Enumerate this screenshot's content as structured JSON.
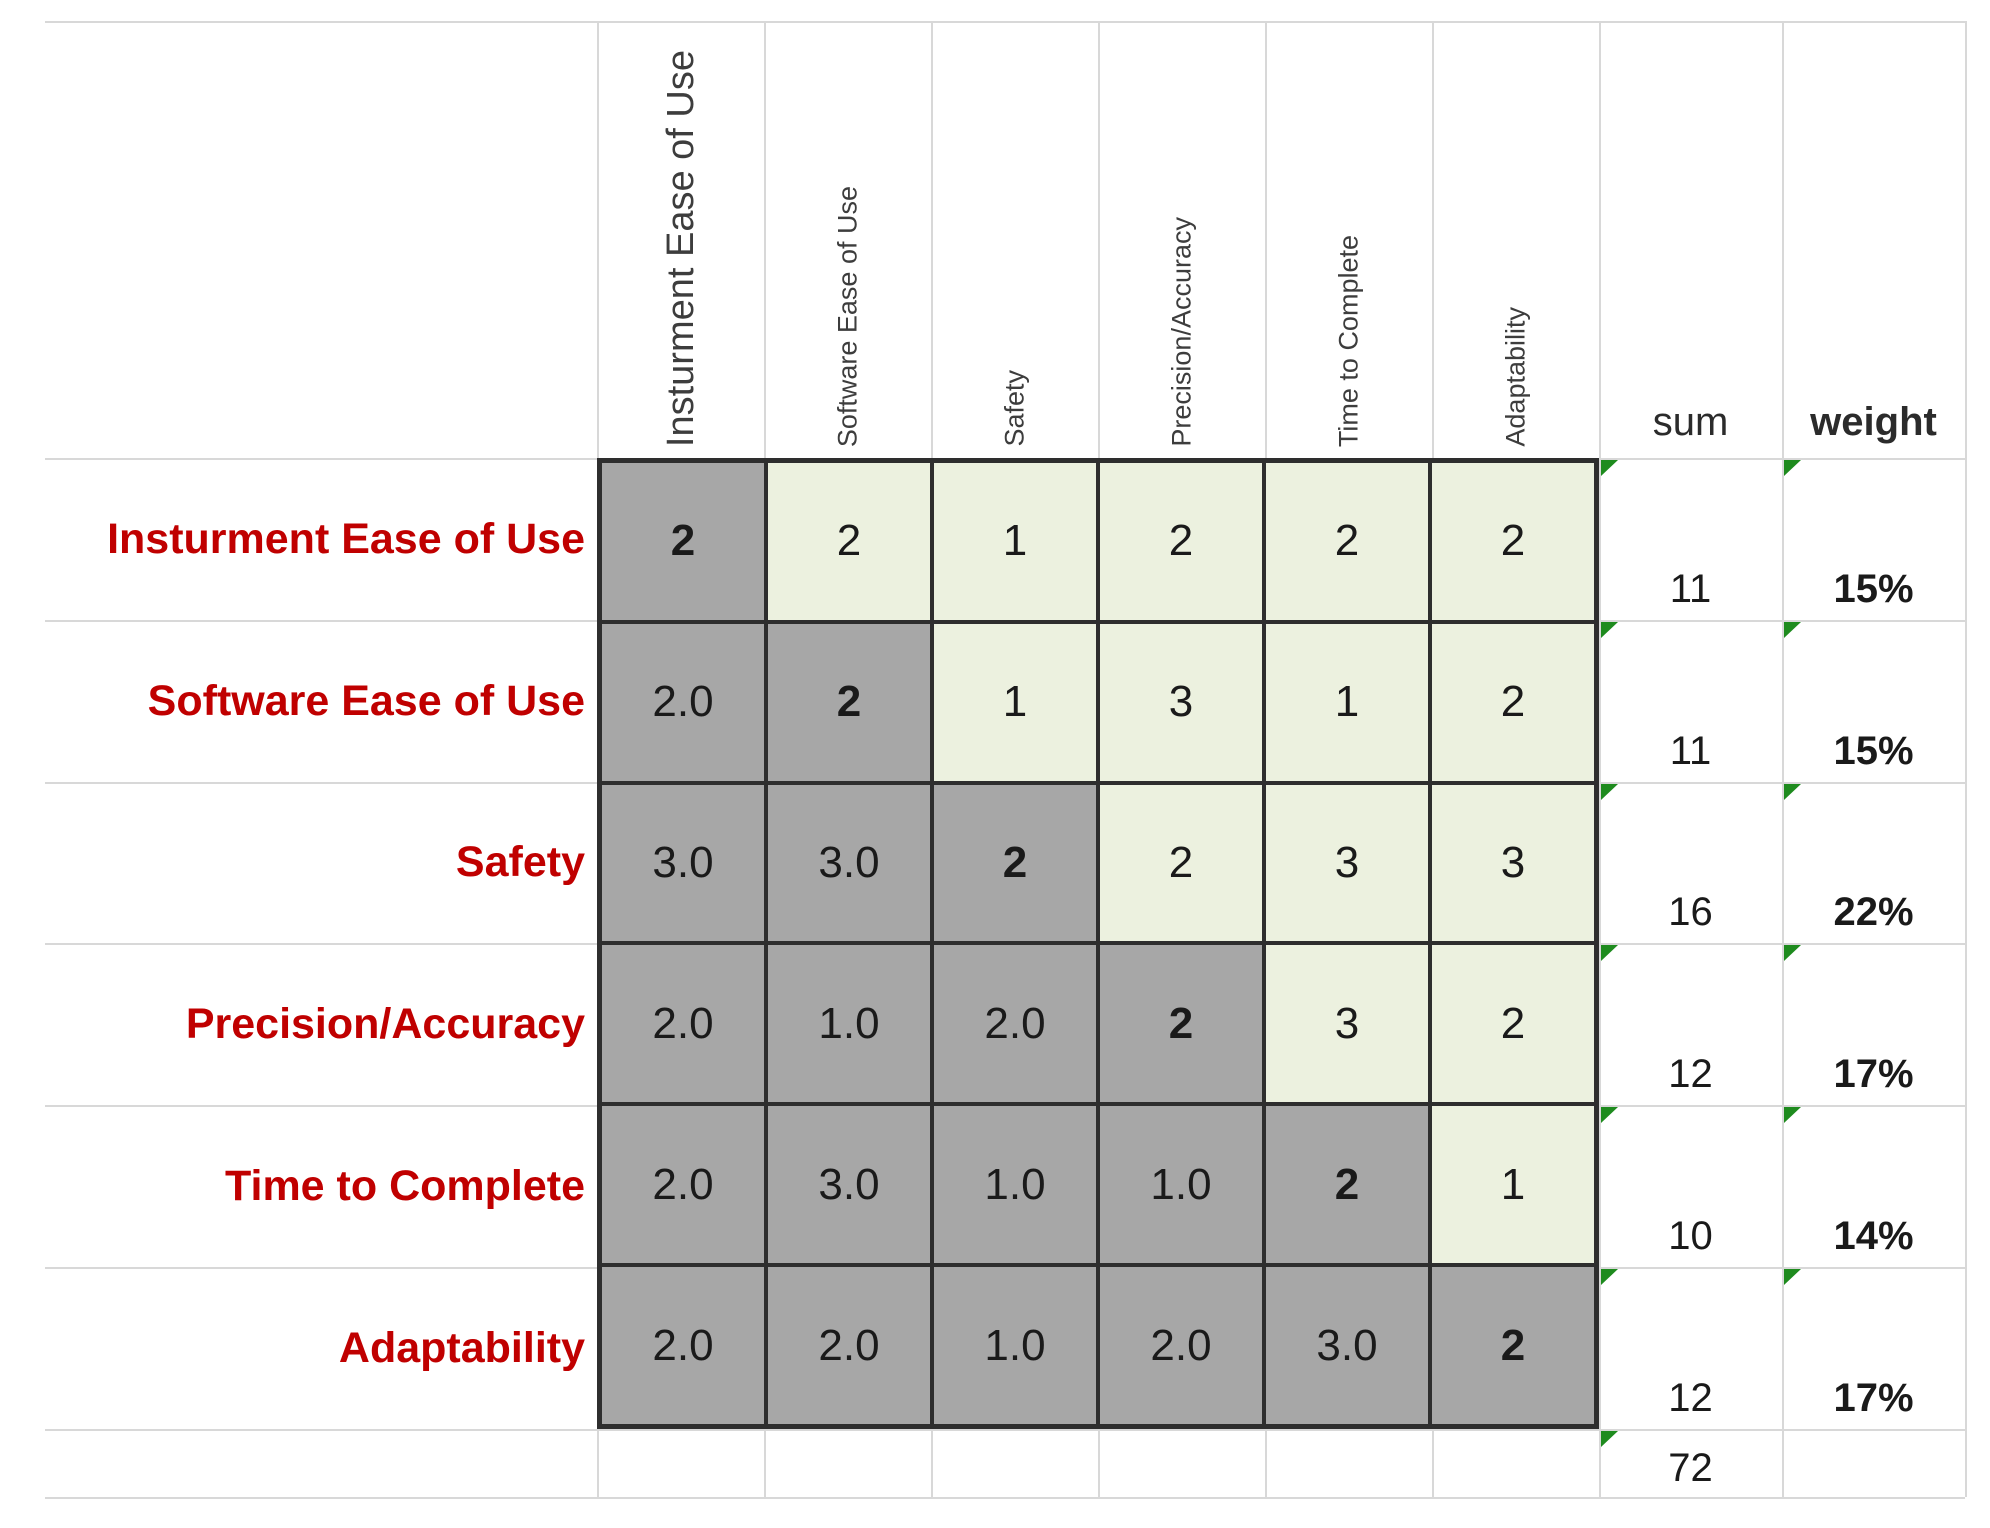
{
  "table": {
    "criteria": [
      "Insturment Ease of Use",
      "Software Ease of Use",
      "Safety",
      "Precision/Accuracy",
      "Time to Complete",
      "Adaptability"
    ],
    "matrix": [
      [
        "2",
        "2",
        "1",
        "2",
        "2",
        "2"
      ],
      [
        "2.0",
        "2",
        "1",
        "3",
        "1",
        "2"
      ],
      [
        "3.0",
        "3.0",
        "2",
        "2",
        "3",
        "3"
      ],
      [
        "2.0",
        "1.0",
        "2.0",
        "2",
        "3",
        "2"
      ],
      [
        "2.0",
        "3.0",
        "1.0",
        "1.0",
        "2",
        "1"
      ],
      [
        "2.0",
        "2.0",
        "1.0",
        "2.0",
        "3.0",
        "2"
      ]
    ],
    "sum_header": "sum",
    "weight_header": "weight",
    "sums": [
      "11",
      "11",
      "16",
      "12",
      "10",
      "12"
    ],
    "weights": [
      "15%",
      "15%",
      "22%",
      "17%",
      "14%",
      "17%"
    ],
    "total_sum": "72"
  },
  "colors": {
    "diagonal_lower_fill": "#a7a7a7",
    "upper_fill": "#ecf1df",
    "row_label_red": "#c00000",
    "matrix_border": "#2e2e2e",
    "gridline": "#d8d8d8",
    "error_triangle": "#1e8b1e",
    "text": "#1a1a1a"
  }
}
